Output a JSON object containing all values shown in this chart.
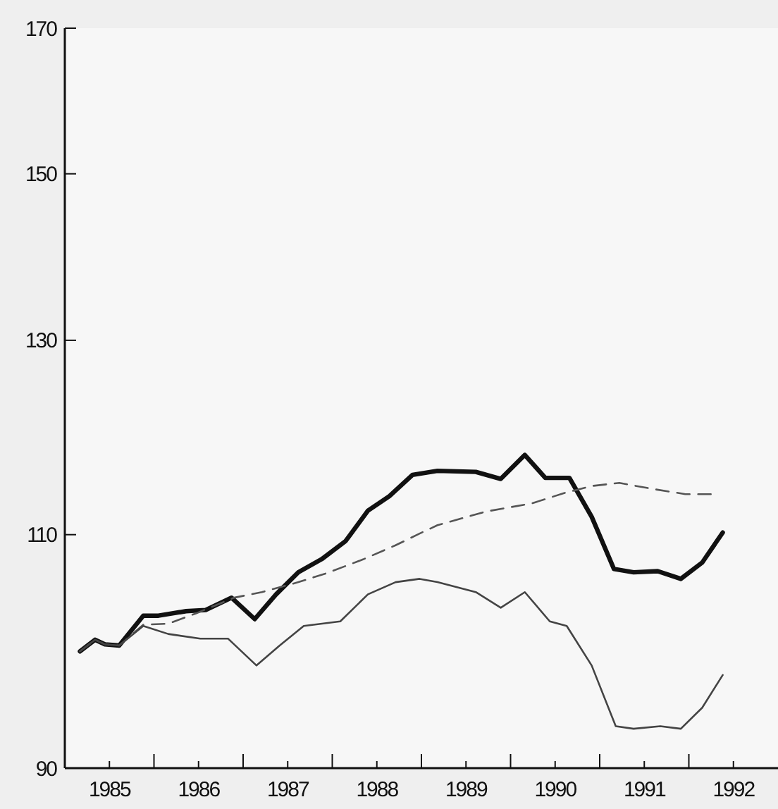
{
  "chart_data": {
    "type": "line",
    "log": true,
    "xlim": [
      1985,
      1993
    ],
    "ylim": [
      90,
      170
    ],
    "yticks": [
      90,
      110,
      130,
      150,
      170
    ],
    "xticks": [
      {
        "value": 1985.5,
        "label": "1985"
      },
      {
        "value": 1986.5,
        "label": "1986"
      },
      {
        "value": 1987.5,
        "label": "1987"
      },
      {
        "value": 1988.5,
        "label": "1988"
      },
      {
        "value": 1989.5,
        "label": "1989"
      },
      {
        "value": 1990.5,
        "label": "1990"
      },
      {
        "value": 1991.5,
        "label": "1991"
      },
      {
        "value": 1992.5,
        "label": "1992"
      },
      {
        "value": 1986,
        "label": null
      },
      {
        "value": 1987,
        "label": null
      },
      {
        "value": 1988,
        "label": null
      },
      {
        "value": 1989,
        "label": null
      },
      {
        "value": 1990,
        "label": null
      },
      {
        "value": 1991,
        "label": null
      },
      {
        "value": 1992,
        "label": null
      }
    ],
    "grid": false,
    "marker": "none",
    "series": [
      {
        "color": "#111111",
        "line_style": "solid",
        "x": [
          1985.17,
          1985.34,
          1985.45,
          1985.61,
          1985.88,
          1986.05,
          1986.36,
          1986.58,
          1986.87,
          1987.13,
          1987.37,
          1987.62,
          1987.88,
          1988.15,
          1988.4,
          1988.64,
          1988.9,
          1989.18,
          1989.61,
          1989.89,
          1990.16,
          1990.39,
          1990.66,
          1990.91,
          1991.16,
          1991.38,
          1991.65,
          1991.91,
          1992.15,
          1992.38
        ],
        "values": [
          99.5,
          100.5,
          100.1,
          100.0,
          102.6,
          102.6,
          103.0,
          103.1,
          104.2,
          102.3,
          104.5,
          106.5,
          107.7,
          109.4,
          112.3,
          113.7,
          115.8,
          116.2,
          116.1,
          115.4,
          117.8,
          115.5,
          115.5,
          111.7,
          106.8,
          106.5,
          106.6,
          105.9,
          107.4,
          110.2
        ]
      },
      {
        "color": "#555555",
        "line_style": "dashed",
        "x": [
          1985.17,
          1985.34,
          1985.45,
          1985.61,
          1985.88,
          1986.16,
          1986.47,
          1986.9,
          1987.21,
          1987.62,
          1987.93,
          1988.35,
          1988.71,
          1988.98,
          1989.18,
          1989.72,
          1990.24,
          1990.6,
          1990.91,
          1991.22,
          1991.6,
          1991.96,
          1992.3
        ],
        "values": [
          99.5,
          100.5,
          100.1,
          100.0,
          101.8,
          101.9,
          102.8,
          104.2,
          104.7,
          105.6,
          106.4,
          107.7,
          109.0,
          110.1,
          110.9,
          112.2,
          113.0,
          114.0,
          114.7,
          115.0,
          114.4,
          113.9,
          113.9
        ]
      },
      {
        "color": "#444444",
        "line_style": "solid",
        "x": [
          1985.17,
          1985.34,
          1985.45,
          1985.61,
          1985.88,
          1986.16,
          1986.52,
          1986.83,
          1987.15,
          1987.41,
          1987.68,
          1988.09,
          1988.4,
          1988.71,
          1988.98,
          1989.18,
          1989.61,
          1989.89,
          1990.16,
          1990.44,
          1990.63,
          1990.91,
          1991.18,
          1991.38,
          1991.68,
          1991.91,
          1992.15,
          1992.38
        ],
        "values": [
          99.5,
          100.5,
          100.1,
          100.0,
          101.7,
          101.0,
          100.6,
          100.6,
          98.3,
          100.0,
          101.7,
          102.1,
          104.5,
          105.6,
          105.9,
          105.6,
          104.7,
          103.3,
          104.7,
          102.1,
          101.7,
          98.3,
          93.3,
          93.1,
          93.3,
          93.1,
          94.8,
          97.5
        ]
      }
    ]
  }
}
